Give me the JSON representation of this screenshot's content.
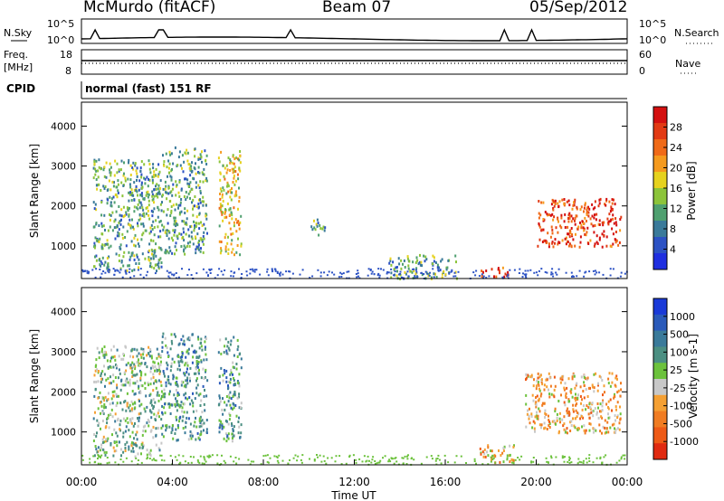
{
  "header": {
    "station": "McMurdo (fitACF)",
    "beam": "Beam 07",
    "date": "05/Sep/2012"
  },
  "noise_panel": {
    "left_label": "N.Sky",
    "right_label": "N.Search",
    "left_ticks": [
      "10^5",
      "10^0"
    ],
    "right_ticks": [
      "10^5",
      "10^0"
    ]
  },
  "freq_panel": {
    "left_label_1": "Freq.",
    "left_label_2": "[MHz]",
    "right_label": "Nave",
    "left_ticks": [
      "18",
      "8"
    ],
    "right_ticks": [
      "60",
      "0"
    ]
  },
  "cpid": {
    "label": "CPID",
    "text": "normal (fast) 151 RF"
  },
  "colors": {
    "power_scale": [
      "#1f2fe0",
      "#2c52c4",
      "#3a7a9a",
      "#4fa070",
      "#8cc43a",
      "#e6d21e",
      "#f59a1e",
      "#f06a18",
      "#e23a14",
      "#d41010"
    ],
    "velocity_scale": [
      "#1a3ad8",
      "#2a5aba",
      "#3a7a9a",
      "#4b8f82",
      "#6cc23c",
      "#c8c8c8",
      "#f5a033",
      "#f07c22",
      "#ee5a16",
      "#e02a10"
    ]
  },
  "chart_data": [
    {
      "type": "heatmap",
      "name": "power",
      "ylabel": "Slant Range [km]",
      "yticks": [
        "1000",
        "2000",
        "3000",
        "4000"
      ],
      "ylim": [
        180,
        4600
      ],
      "colorbar_label": "Power [dB]",
      "colorbar_ticks": [
        "4",
        "8",
        "12",
        "16",
        "20",
        "24",
        "28"
      ],
      "colorbar_range": [
        0,
        32
      ],
      "regions": [
        {
          "t": [
            0.5,
            3.5
          ],
          "r": [
            400,
            3200
          ],
          "v": 10
        },
        {
          "t": [
            3.5,
            5.5
          ],
          "r": [
            800,
            3500
          ],
          "v": 12
        },
        {
          "t": [
            6.0,
            7.0
          ],
          "r": [
            800,
            3400
          ],
          "v": 18
        },
        {
          "t": [
            10.0,
            10.7
          ],
          "r": [
            1300,
            1700
          ],
          "v": 12
        },
        {
          "t": [
            13.5,
            16.5
          ],
          "r": [
            200,
            800
          ],
          "v": 10
        },
        {
          "t": [
            17.5,
            18.8
          ],
          "r": [
            250,
            500
          ],
          "v": 26
        },
        {
          "t": [
            20.0,
            23.7
          ],
          "r": [
            1000,
            2200
          ],
          "v": 26
        }
      ]
    },
    {
      "type": "heatmap",
      "name": "velocity",
      "ylabel": "Slant Range [km]",
      "yticks": [
        "1000",
        "2000",
        "3000",
        "4000"
      ],
      "ylim": [
        180,
        4600
      ],
      "colorbar_label": "Velocity [m s-1]",
      "colorbar_ticks": [
        "1000",
        "500",
        "100",
        "25",
        "-25",
        "-100",
        "-500",
        "-1000"
      ],
      "colorbar_range": [
        -1000,
        1000
      ],
      "regions": [
        {
          "t": [
            0.5,
            3.5
          ],
          "r": [
            400,
            3200
          ],
          "v": 80
        },
        {
          "t": [
            3.5,
            5.5
          ],
          "r": [
            800,
            3500
          ],
          "v": 400
        },
        {
          "t": [
            6.0,
            7.0
          ],
          "r": [
            800,
            3400
          ],
          "v": 300
        },
        {
          "t": [
            17.5,
            19.0
          ],
          "r": [
            250,
            700
          ],
          "v": -200
        },
        {
          "t": [
            19.5,
            23.7
          ],
          "r": [
            1000,
            2500
          ],
          "v": -200
        }
      ]
    }
  ],
  "x_axis": {
    "label": "Time UT",
    "ticks": [
      "00:00",
      "04:00",
      "08:00",
      "12:00",
      "16:00",
      "20:00",
      "00:00"
    ]
  }
}
